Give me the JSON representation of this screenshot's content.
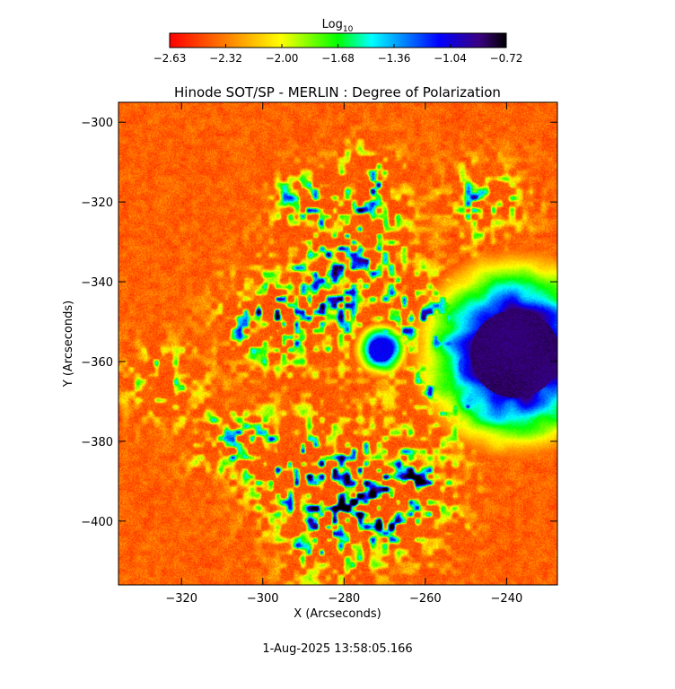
{
  "chart_data": {
    "type": "heatmap",
    "title": "Hinode SOT/SP - MERLIN : Degree of Polarization",
    "xlabel": "X (Arcseconds)",
    "ylabel": "Y (Arcseconds)",
    "xlim": [
      -335.5,
      -227.5
    ],
    "ylim": [
      -416,
      -295
    ],
    "x_ticks": [
      -320,
      -300,
      -280,
      -260,
      -240
    ],
    "y_ticks": [
      -300,
      -320,
      -340,
      -360,
      -380,
      -400
    ],
    "colorbar": {
      "title": "Log",
      "title_subscript": "10",
      "range": [
        -2.63,
        -0.72
      ],
      "ticks": [
        "-2.63",
        "-2.32",
        "-2.00",
        "-1.68",
        "-1.36",
        "-1.04",
        "-0.72"
      ],
      "colors": [
        "#ff0000",
        "#ff8000",
        "#ffff00",
        "#00ff00",
        "#00ffff",
        "#0000ff",
        "#000000"
      ]
    },
    "features": [
      {
        "x": -238,
        "y": -358,
        "radius": 11,
        "value": -0.85
      },
      {
        "x": -271,
        "y": -357,
        "radius": 3,
        "value": -1.1
      },
      {
        "x": -249,
        "y": -361,
        "radius": 3,
        "value": -1.2
      }
    ]
  },
  "footer": {
    "timestamp": "1-Aug-2025 13:58:05.166"
  }
}
